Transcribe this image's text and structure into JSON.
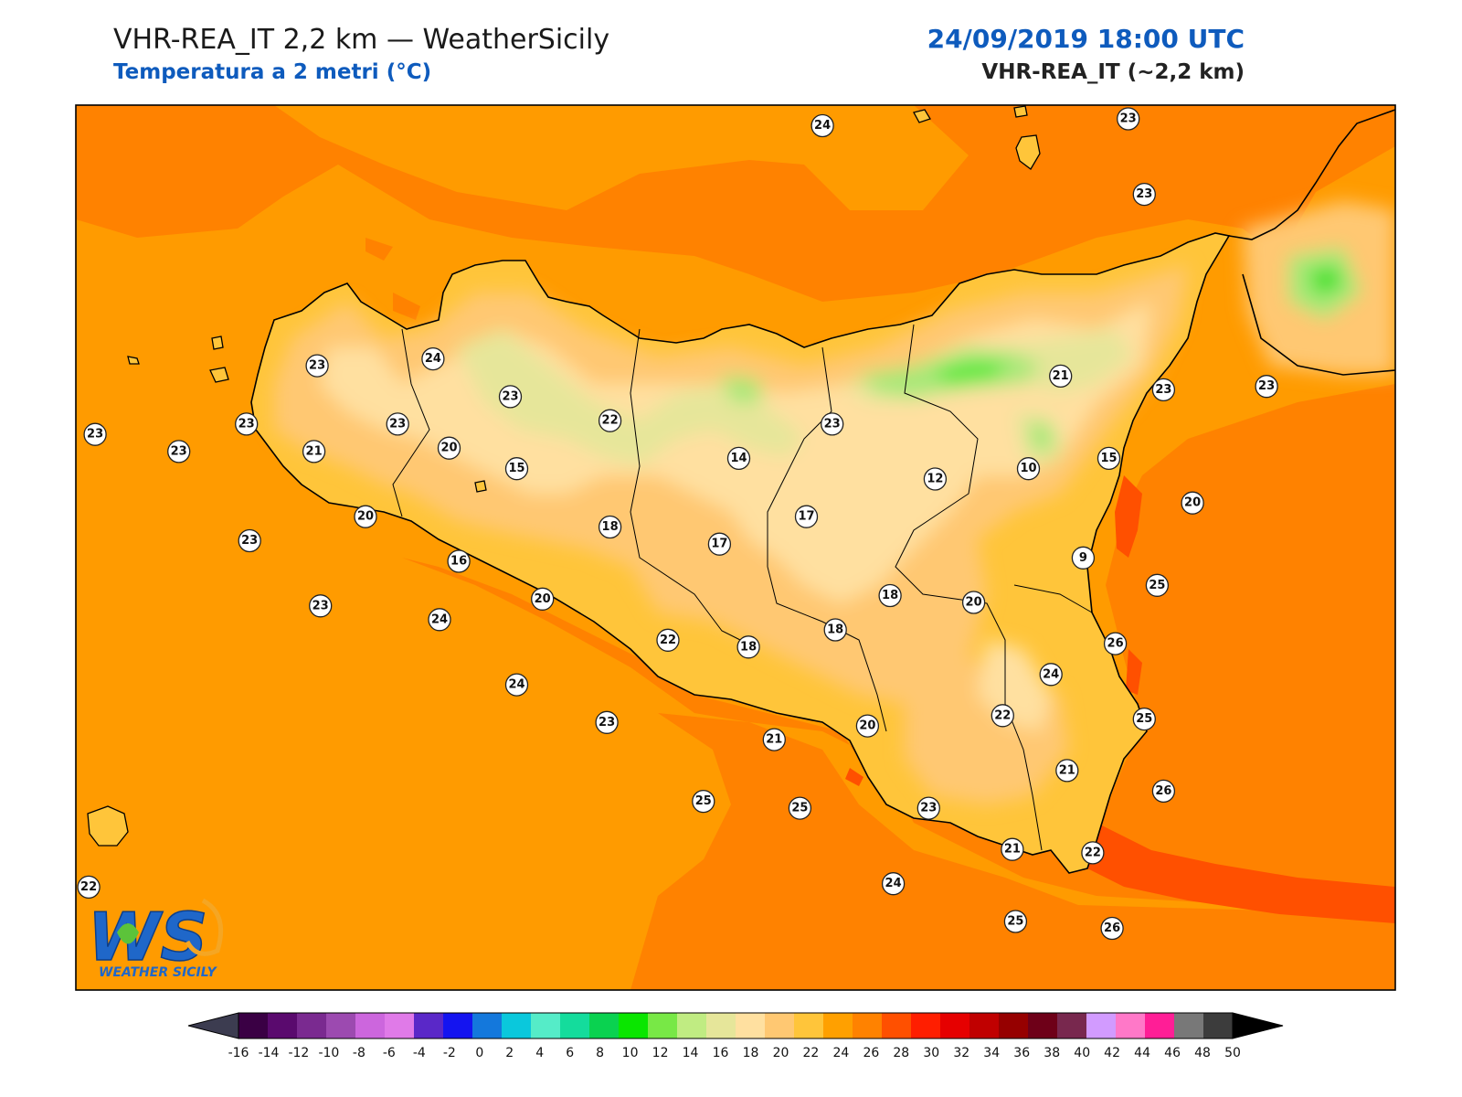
{
  "header": {
    "title": "VHR-REA_IT 2,2 km — WeatherSicily",
    "subtitle": "Temperatura a 2 metri (°C)",
    "datetime": "24/09/2019 18:00 UTC",
    "model": "VHR-REA_IT (~2,2 km)"
  },
  "logo": {
    "letters": "WS",
    "text": "WEATHER SICILY"
  },
  "colors": {
    "sea_base": "#ff9b00",
    "sea_warm": "#ff8200",
    "sea_hot": "#ff5000",
    "land_22": "#ffc53a",
    "land_20": "#ffc872",
    "land_18": "#ffe0a0",
    "land_14": "#e6e69a",
    "green_12": "#a8e878",
    "green_10": "#5ee83e",
    "green_8": "#14d814",
    "coast": "#000000",
    "title_blue": "#0e5bbd"
  },
  "colorbar": {
    "ticks": [
      "-16",
      "-14",
      "-12",
      "-10",
      "-8",
      "-6",
      "-4",
      "-2",
      "0",
      "2",
      "4",
      "6",
      "8",
      "10",
      "12",
      "14",
      "16",
      "18",
      "20",
      "22",
      "24",
      "26",
      "28",
      "30",
      "32",
      "34",
      "36",
      "38",
      "40",
      "42",
      "44",
      "46",
      "48",
      "50"
    ],
    "colors": [
      "#3a0044",
      "#5a0a6e",
      "#7a2a90",
      "#9c4ab0",
      "#cc66dd",
      "#e07ae8",
      "#5a28c8",
      "#1414f0",
      "#1478dc",
      "#0ac8dc",
      "#55ecc8",
      "#14dc9c",
      "#0ad250",
      "#0ae600",
      "#78e846",
      "#c0ec82",
      "#e6e69a",
      "#ffe0a0",
      "#ffc872",
      "#ffc53a",
      "#ffa000",
      "#ff8200",
      "#ff5000",
      "#ff1e00",
      "#e60000",
      "#c00000",
      "#960000",
      "#6e0018",
      "#78284e",
      "#d29bff",
      "#ff78c8",
      "#ff1e96",
      "#787878",
      "#3c3c3c"
    ],
    "under_color": "#3c3c50",
    "over_color": "#000000"
  },
  "stations": [
    {
      "v": "24",
      "lon": 14.22,
      "lat": 39.0
    },
    {
      "v": "23",
      "lon": 15.17,
      "lat": 39.02
    },
    {
      "v": "23",
      "lon": 15.22,
      "lat": 38.8
    },
    {
      "v": "23",
      "lon": 12.65,
      "lat": 38.3
    },
    {
      "v": "24",
      "lon": 13.01,
      "lat": 38.32
    },
    {
      "v": "23",
      "lon": 13.25,
      "lat": 38.21
    },
    {
      "v": "23",
      "lon": 12.43,
      "lat": 38.13
    },
    {
      "v": "23",
      "lon": 12.9,
      "lat": 38.13
    },
    {
      "v": "22",
      "lon": 13.56,
      "lat": 38.14
    },
    {
      "v": "23",
      "lon": 11.96,
      "lat": 38.1
    },
    {
      "v": "23",
      "lon": 12.22,
      "lat": 38.05
    },
    {
      "v": "21",
      "lon": 12.64,
      "lat": 38.05
    },
    {
      "v": "20",
      "lon": 13.06,
      "lat": 38.06
    },
    {
      "v": "15",
      "lon": 13.27,
      "lat": 38.0
    },
    {
      "v": "14",
      "lon": 13.96,
      "lat": 38.03
    },
    {
      "v": "23",
      "lon": 14.25,
      "lat": 38.13
    },
    {
      "v": "21",
      "lon": 14.96,
      "lat": 38.27
    },
    {
      "v": "23",
      "lon": 15.28,
      "lat": 38.23
    },
    {
      "v": "23",
      "lon": 15.6,
      "lat": 38.24
    },
    {
      "v": "10",
      "lon": 14.86,
      "lat": 38.0
    },
    {
      "v": "12",
      "lon": 14.57,
      "lat": 37.97
    },
    {
      "v": "15",
      "lon": 15.11,
      "lat": 38.03
    },
    {
      "v": "20",
      "lon": 15.37,
      "lat": 37.9
    },
    {
      "v": "20",
      "lon": 12.8,
      "lat": 37.86
    },
    {
      "v": "18",
      "lon": 13.56,
      "lat": 37.83
    },
    {
      "v": "17",
      "lon": 14.17,
      "lat": 37.86
    },
    {
      "v": "17",
      "lon": 13.9,
      "lat": 37.78
    },
    {
      "v": "9",
      "lon": 15.03,
      "lat": 37.74
    },
    {
      "v": "23",
      "lon": 12.44,
      "lat": 37.79
    },
    {
      "v": "16",
      "lon": 13.09,
      "lat": 37.73
    },
    {
      "v": "18",
      "lon": 14.43,
      "lat": 37.63
    },
    {
      "v": "25",
      "lon": 15.26,
      "lat": 37.66
    },
    {
      "v": "20",
      "lon": 13.35,
      "lat": 37.62
    },
    {
      "v": "20",
      "lon": 14.69,
      "lat": 37.61
    },
    {
      "v": "23",
      "lon": 12.66,
      "lat": 37.6
    },
    {
      "v": "24",
      "lon": 13.03,
      "lat": 37.56
    },
    {
      "v": "18",
      "lon": 14.26,
      "lat": 37.53
    },
    {
      "v": "22",
      "lon": 13.74,
      "lat": 37.5
    },
    {
      "v": "18",
      "lon": 13.99,
      "lat": 37.48
    },
    {
      "v": "26",
      "lon": 15.13,
      "lat": 37.49
    },
    {
      "v": "24",
      "lon": 14.93,
      "lat": 37.4
    },
    {
      "v": "24",
      "lon": 13.27,
      "lat": 37.37
    },
    {
      "v": "22",
      "lon": 14.78,
      "lat": 37.28
    },
    {
      "v": "23",
      "lon": 13.55,
      "lat": 37.26
    },
    {
      "v": "20",
      "lon": 14.36,
      "lat": 37.25
    },
    {
      "v": "25",
      "lon": 15.22,
      "lat": 37.27
    },
    {
      "v": "21",
      "lon": 14.07,
      "lat": 37.21
    },
    {
      "v": "21",
      "lon": 14.98,
      "lat": 37.12
    },
    {
      "v": "25",
      "lon": 13.85,
      "lat": 37.03
    },
    {
      "v": "23",
      "lon": 14.55,
      "lat": 37.01
    },
    {
      "v": "25",
      "lon": 14.15,
      "lat": 37.01
    },
    {
      "v": "26",
      "lon": 15.28,
      "lat": 37.06
    },
    {
      "v": "21",
      "lon": 14.81,
      "lat": 36.89
    },
    {
      "v": "22",
      "lon": 15.06,
      "lat": 36.88
    },
    {
      "v": "24",
      "lon": 14.44,
      "lat": 36.79
    },
    {
      "v": "25",
      "lon": 14.82,
      "lat": 36.68
    },
    {
      "v": "26",
      "lon": 15.12,
      "lat": 36.66
    },
    {
      "v": "22",
      "lon": 11.94,
      "lat": 36.78
    }
  ]
}
